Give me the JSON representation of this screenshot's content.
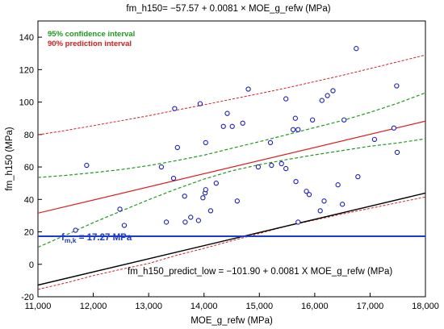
{
  "chart_data": {
    "type": "scatter",
    "title": "fm_h150= −57.57 + 0.0081 × MOE_g_refw (MPa)",
    "xlabel": "MOE_g_refw (MPa)",
    "ylabel": "fm_h150 (MPa)",
    "xlim": [
      11000,
      18000
    ],
    "ylim": [
      -20,
      150
    ],
    "x_ticks": [
      11000,
      12000,
      13000,
      14000,
      15000,
      16000,
      17000,
      18000
    ],
    "x_tick_labels": [
      "11,000",
      "12,000",
      "13,000",
      "14,000",
      "15,000",
      "16,000",
      "17,000",
      "18,000"
    ],
    "y_ticks": [
      -20,
      0,
      20,
      40,
      60,
      80,
      100,
      120,
      140
    ],
    "y_tick_labels": [
      "-20",
      "0",
      "20",
      "40",
      "60",
      "80",
      "100",
      "120",
      "140"
    ],
    "grid": false,
    "legend": [
      {
        "label": "95% confidence interval",
        "color": "#1a9e1a"
      },
      {
        "label": "90% prediction interval",
        "color": "#e01b1b"
      }
    ],
    "legend_position": "top-left",
    "points": [
      {
        "x": 11680,
        "y": 21
      },
      {
        "x": 11880,
        "y": 61
      },
      {
        "x": 12480,
        "y": 34
      },
      {
        "x": 12560,
        "y": 24
      },
      {
        "x": 13230,
        "y": 60
      },
      {
        "x": 13320,
        "y": 26
      },
      {
        "x": 13450,
        "y": 53
      },
      {
        "x": 13470,
        "y": 96
      },
      {
        "x": 13520,
        "y": 72
      },
      {
        "x": 13650,
        "y": 42
      },
      {
        "x": 13660,
        "y": 26
      },
      {
        "x": 13760,
        "y": 29
      },
      {
        "x": 13900,
        "y": 27
      },
      {
        "x": 13930,
        "y": 99
      },
      {
        "x": 13980,
        "y": 41
      },
      {
        "x": 14020,
        "y": 44
      },
      {
        "x": 14030,
        "y": 46
      },
      {
        "x": 14030,
        "y": 75
      },
      {
        "x": 14120,
        "y": 33
      },
      {
        "x": 14220,
        "y": 50
      },
      {
        "x": 14350,
        "y": 85
      },
      {
        "x": 14420,
        "y": 93
      },
      {
        "x": 14510,
        "y": 85
      },
      {
        "x": 14600,
        "y": 39
      },
      {
        "x": 14700,
        "y": 87
      },
      {
        "x": 14800,
        "y": 108
      },
      {
        "x": 14980,
        "y": 60
      },
      {
        "x": 15220,
        "y": 61
      },
      {
        "x": 15200,
        "y": 75
      },
      {
        "x": 15400,
        "y": 62
      },
      {
        "x": 15480,
        "y": 102
      },
      {
        "x": 15480,
        "y": 59
      },
      {
        "x": 15610,
        "y": 83
      },
      {
        "x": 15650,
        "y": 90
      },
      {
        "x": 15660,
        "y": 51
      },
      {
        "x": 15700,
        "y": 26
      },
      {
        "x": 15700,
        "y": 83
      },
      {
        "x": 15850,
        "y": 45
      },
      {
        "x": 15900,
        "y": 43
      },
      {
        "x": 15960,
        "y": 89
      },
      {
        "x": 16100,
        "y": 33
      },
      {
        "x": 16130,
        "y": 101
      },
      {
        "x": 16170,
        "y": 39
      },
      {
        "x": 16230,
        "y": 104
      },
      {
        "x": 16330,
        "y": 107
      },
      {
        "x": 16420,
        "y": 49
      },
      {
        "x": 16500,
        "y": 37
      },
      {
        "x": 16530,
        "y": 89
      },
      {
        "x": 16750,
        "y": 133
      },
      {
        "x": 16780,
        "y": 54
      },
      {
        "x": 17080,
        "y": 77
      },
      {
        "x": 17430,
        "y": 84
      },
      {
        "x": 17480,
        "y": 110
      },
      {
        "x": 17490,
        "y": 69
      }
    ],
    "regression": {
      "intercept": -57.57,
      "slope": 0.0081,
      "color": "#e01b1b"
    },
    "confidence_interval_95": {
      "color": "#1a9e1a",
      "x": [
        11000,
        11500,
        12000,
        12500,
        13000,
        13500,
        14000,
        14500,
        15000,
        15500,
        16000,
        16500,
        17000,
        17500,
        18000
      ],
      "upper": [
        53.5,
        54.8,
        56.5,
        58.4,
        60.8,
        63.9,
        67.3,
        71.5,
        75.6,
        79.9,
        84.3,
        88.6,
        93.7,
        99.3,
        105.7
      ],
      "lower": [
        10.5,
        18.0,
        25.7,
        32.8,
        39.8,
        46.4,
        52.5,
        57.6,
        61.4,
        64.6,
        67.5,
        70.1,
        72.8,
        74.8,
        77.4
      ]
    },
    "prediction_interval_90": {
      "color": "#e01b1b",
      "x": [
        11000,
        11500,
        12000,
        12500,
        13000,
        13500,
        14000,
        14500,
        15000,
        15500,
        16000,
        16500,
        17000,
        17500,
        18000
      ],
      "upper": [
        79.8,
        82.5,
        85.5,
        88.5,
        91.6,
        95.0,
        98.3,
        101.8,
        105.2,
        108.8,
        112.6,
        116.5,
        120.6,
        124.8,
        129.0
      ],
      "lower": [
        -15.5,
        -11.5,
        -7.0,
        -3.1,
        0.5,
        5.5,
        9.8,
        14.5,
        19.0,
        23.6,
        27.3,
        31.0,
        34.5,
        38.0,
        41.5
      ]
    },
    "predict_low_line": {
      "intercept": -101.9,
      "slope": 0.0081,
      "color": "#000000"
    },
    "fmk_line": {
      "value": 17.27,
      "color": "#1a3ad6"
    },
    "annotations": {
      "fmk_label": "f",
      "fmk_subscript": "m,k",
      "fmk_value": " = 17.27 MPa",
      "predict_low_label": "fm_h150_predict_low = −101.90 + 0.0081 X MOE_g_refw (MPa)"
    }
  }
}
